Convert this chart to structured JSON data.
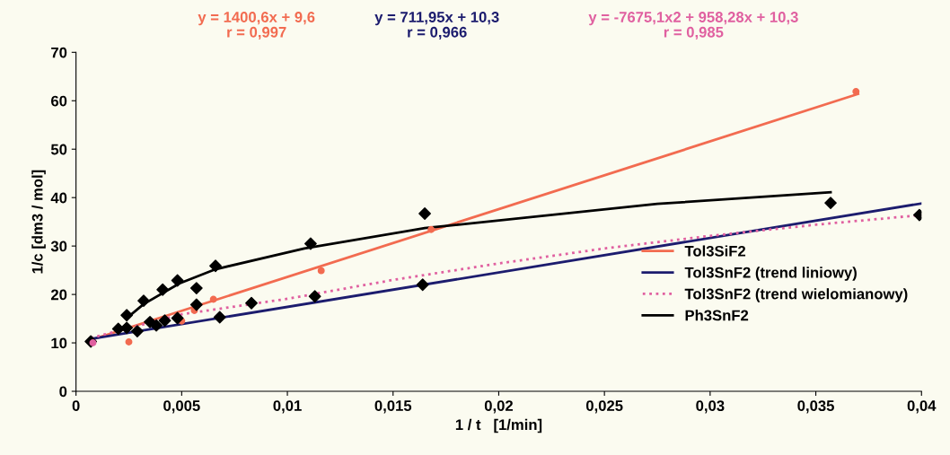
{
  "chart_data": {
    "type": "line",
    "xlabel": "1 / t   [1/min]",
    "ylabel": "1/c [dm3 / mol]",
    "xlim": [
      0,
      0.04
    ],
    "ylim": [
      0,
      70
    ],
    "xticks": [
      0,
      {
        "value": 0.005,
        "label": "0,005"
      },
      {
        "value": 0.01,
        "label": "0,01"
      },
      {
        "value": 0.015,
        "label": "0,015"
      },
      {
        "value": 0.02,
        "label": "0,02"
      },
      {
        "value": 0.025,
        "label": "0,025"
      },
      {
        "value": 0.03,
        "label": "0,03"
      },
      {
        "value": 0.035,
        "label": "0,035"
      },
      {
        "value": 0.04,
        "label": "0,04"
      }
    ],
    "yticks": [
      0,
      10,
      20,
      30,
      40,
      50,
      60,
      70
    ],
    "grid": false,
    "legend": "bottom right",
    "marker": "none",
    "line_style": "solid",
    "annotations": [
      "y = 1400,6x + 9,6\nr = 0,997",
      "y = 711,95x + 10,3\nr = 0,966",
      "y = -7675,1x2 + 958,28x + 10,3\nr = 0,985"
    ],
    "series": [
      {
        "name": "Tol3SiF2",
        "color": "#f26b50",
        "x": [
          0.0007,
          0.037
        ],
        "values": [
          10.6,
          61.4
        ]
      },
      {
        "name": "Tol3SnF2 (trend liniowy)",
        "color": "#1c1c6e",
        "x": [
          0.0007,
          0.04
        ],
        "values": [
          10.8,
          38.8
        ]
      },
      {
        "name": "Tol3SnF2 (trend wielomianowy)",
        "color": "#e060a0",
        "line_style": "dotted",
        "x": [
          0.0007,
          0.005,
          0.01,
          0.015,
          0.02,
          0.025,
          0.03,
          0.035,
          0.04
        ],
        "values": [
          11.0,
          15.9,
          19.1,
          23.0,
          26.4,
          29.5,
          32.1,
          34.4,
          36.4
        ]
      },
      {
        "name": "Ph3SnF2",
        "color": "#000000",
        "x": [
          0.0024,
          0.0032,
          0.0049,
          0.0066,
          0.0108,
          0.0165,
          0.0275,
          0.0357
        ],
        "values": [
          15.1,
          18.0,
          22.3,
          25.2,
          29.5,
          33.7,
          38.7,
          41.1
        ]
      },
      {
        "type": "scatter",
        "color": "#f26b50",
        "marker": "circle",
        "x": [
          0.0025,
          0.005,
          0.0056,
          0.0065,
          0.0116,
          0.0168,
          0.0369
        ],
        "values": [
          10.2,
          14.5,
          16.7,
          19.0,
          24.9,
          33.4,
          61.9
        ]
      },
      {
        "type": "scatter",
        "color": "#000000",
        "marker": "diamond",
        "x": [
          0.0007,
          0.002,
          0.0024,
          0.0029,
          0.0035,
          0.0038,
          0.0042,
          0.0048,
          0.0057,
          0.0068,
          0.0083,
          0.0113,
          0.0164,
          0.0399
        ],
        "values": [
          10.3,
          12.9,
          13.1,
          12.4,
          14.3,
          13.6,
          14.6,
          15.1,
          17.9,
          15.3,
          18.2,
          19.6,
          22.0,
          36.4
        ]
      },
      {
        "type": "scatter",
        "color": "#000000",
        "marker": "diamond",
        "x": [
          0.0024,
          0.0032,
          0.0041,
          0.0048,
          0.0057,
          0.0066,
          0.0111,
          0.0165,
          0.0357
        ],
        "values": [
          15.7,
          18.7,
          21.0,
          22.9,
          21.3,
          25.9,
          30.5,
          36.7,
          38.9
        ]
      },
      {
        "type": "scatter",
        "color": "#e060a0",
        "marker": "circle",
        "x": [
          0.0008
        ],
        "values": [
          10.0
        ]
      }
    ]
  }
}
